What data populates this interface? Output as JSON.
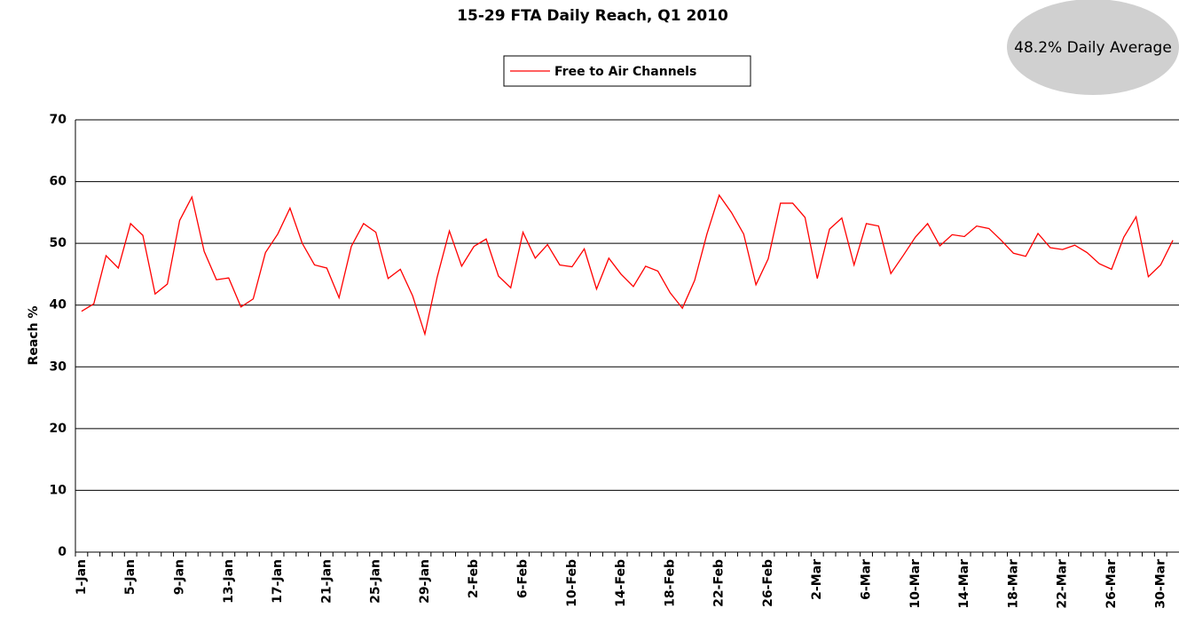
{
  "chart_data": {
    "type": "line",
    "title": "15-29 FTA Daily Reach, Q1 2010",
    "annotation": "48.2% Daily Average",
    "y_label": "Reach %",
    "categories": [
      "1-Jan",
      null,
      null,
      null,
      "5-Jan",
      null,
      null,
      null,
      "9-Jan",
      null,
      null,
      null,
      "13-Jan",
      null,
      null,
      null,
      "17-Jan",
      null,
      null,
      null,
      "21-Jan",
      null,
      null,
      null,
      "25-Jan",
      null,
      null,
      null,
      "29-Jan",
      null,
      null,
      null,
      "2-Feb",
      null,
      null,
      null,
      "6-Feb",
      null,
      null,
      null,
      "10-Feb",
      null,
      null,
      null,
      "14-Feb",
      null,
      null,
      null,
      "18-Feb",
      null,
      null,
      null,
      "22-Feb",
      null,
      null,
      null,
      "26-Feb",
      null,
      null,
      null,
      "2-Mar",
      null,
      null,
      null,
      "6-Mar",
      null,
      null,
      null,
      "10-Mar",
      null,
      null,
      null,
      "14-Mar",
      null,
      null,
      null,
      "18-Mar",
      null,
      null,
      null,
      "22-Mar",
      null,
      null,
      null,
      "26-Mar",
      null,
      null,
      null,
      "30-Mar",
      null
    ],
    "series": [
      {
        "name": "Free to Air Channels",
        "color": "#ff0000",
        "values": [
          39,
          40.2,
          48,
          46,
          53.2,
          51.3,
          41.8,
          43.4,
          53.7,
          57.5,
          48.7,
          44.1,
          44.4,
          39.7,
          41,
          48.5,
          51.5,
          55.7,
          50,
          46.5,
          46,
          41.2,
          49.5,
          53.2,
          51.8,
          44.3,
          45.8,
          41.5,
          35.3,
          44.5,
          52,
          46.3,
          49.5,
          50.7,
          44.7,
          42.8,
          51.8,
          47.6,
          49.8,
          46.5,
          46.2,
          49.1,
          42.6,
          47.6,
          45,
          43,
          46.3,
          45.5,
          42,
          39.5,
          44,
          51.5,
          57.8,
          55,
          51.5,
          43.3,
          47.5,
          56.5,
          56.5,
          54.2,
          44.3,
          52.3,
          54.1,
          46.5,
          53.2,
          52.8,
          45.1,
          48,
          51,
          53.2,
          49.6,
          51.4,
          51.1,
          52.8,
          52.4,
          50.5,
          48.4,
          47.9,
          51.6,
          49.3,
          49,
          49.7,
          48.5,
          46.7,
          45.8,
          51,
          54.3,
          44.6,
          46.5,
          50.5
        ]
      }
    ],
    "ylim": [
      0,
      70
    ],
    "yticks": [
      0,
      10,
      20,
      30,
      40,
      50,
      60,
      70
    ],
    "grid": true
  }
}
